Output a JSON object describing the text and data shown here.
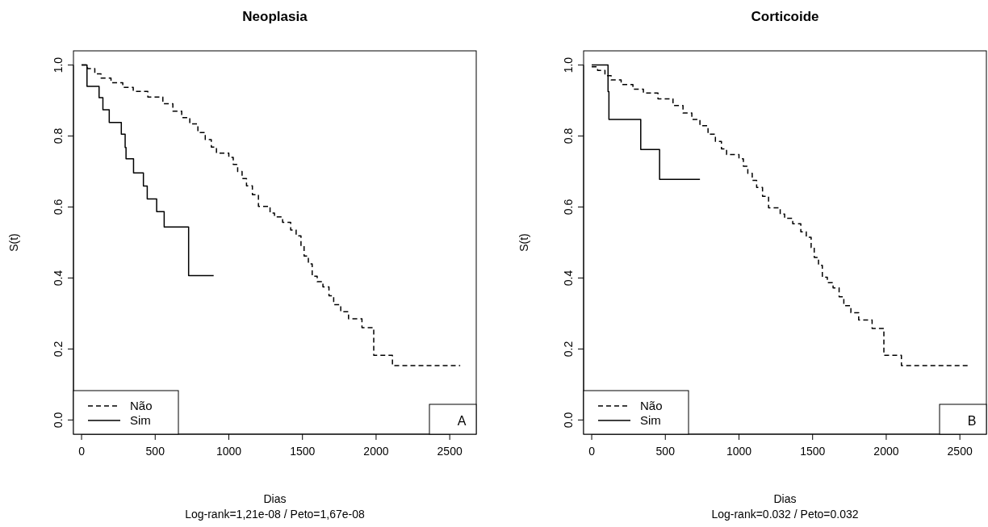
{
  "chart_data": [
    {
      "type": "step",
      "title": "Neoplasia",
      "xlabel": "Dias",
      "ylabel": "S(t)",
      "annotations": [
        "A",
        "Log-rank=1,21e-08  / Peto=1,67e-08"
      ],
      "xlim": [
        -55,
        2680
      ],
      "ylim": [
        -0.04,
        1.04
      ],
      "xticks": [
        0,
        500,
        1000,
        1500,
        2000,
        2500
      ],
      "yticks": [
        {
          "value": 0,
          "label": "0.0"
        },
        {
          "value": 0.2,
          "label": "0.2"
        },
        {
          "value": 0.4,
          "label": "0.4"
        },
        {
          "value": 0.6,
          "label": "0.6"
        },
        {
          "value": 0.8,
          "label": "0.8"
        },
        {
          "value": 1,
          "label": "1.0"
        }
      ],
      "legend": "bottom left",
      "grid": false,
      "series": [
        {
          "name": "Não",
          "color": "#000000",
          "line_style": "dashed",
          "x": [
            0,
            40,
            90,
            132,
            200,
            280,
            351,
            450,
            552,
            620,
            680,
            735,
            790,
            840,
            881,
            916,
            1000,
            1030,
            1060,
            1090,
            1120,
            1160,
            1201,
            1280,
            1310,
            1365,
            1420,
            1457,
            1490,
            1511,
            1540,
            1566,
            1600,
            1639,
            1680,
            1712,
            1760,
            1813,
            1904,
            1984,
            2111,
            2571
          ],
          "values": [
            1.0,
            0.99,
            0.975,
            0.963,
            0.95,
            0.937,
            0.926,
            0.91,
            0.891,
            0.87,
            0.852,
            0.834,
            0.81,
            0.79,
            0.769,
            0.752,
            0.74,
            0.72,
            0.7,
            0.68,
            0.66,
            0.635,
            0.602,
            0.583,
            0.572,
            0.557,
            0.535,
            0.519,
            0.49,
            0.462,
            0.44,
            0.405,
            0.39,
            0.375,
            0.35,
            0.325,
            0.305,
            0.285,
            0.26,
            0.182,
            0.153,
            0.153
          ]
        },
        {
          "name": "Sim",
          "color": "#000000",
          "line_style": "solid",
          "x": [
            0,
            37,
            119,
            145,
            188,
            270,
            296,
            302,
            353,
            420,
            446,
            510,
            561,
            727,
            897
          ],
          "values": [
            1.0,
            0.94,
            0.908,
            0.874,
            0.838,
            0.805,
            0.768,
            0.736,
            0.696,
            0.659,
            0.623,
            0.587,
            0.544,
            0.407,
            0.407
          ]
        }
      ]
    },
    {
      "type": "step",
      "title": "Corticoide",
      "xlabel": "Dias",
      "ylabel": "S(t)",
      "annotations": [
        "B",
        "Log-rank=0.032  / Peto=0.032"
      ],
      "xlim": [
        -55,
        2680
      ],
      "ylim": [
        -0.04,
        1.04
      ],
      "xticks": [
        0,
        500,
        1000,
        1500,
        2000,
        2500
      ],
      "yticks": [
        {
          "value": 0,
          "label": "0.0"
        },
        {
          "value": 0.2,
          "label": "0.2"
        },
        {
          "value": 0.4,
          "label": "0.4"
        },
        {
          "value": 0.6,
          "label": "0.6"
        },
        {
          "value": 0.8,
          "label": "0.8"
        },
        {
          "value": 1,
          "label": "1.0"
        }
      ],
      "legend": "bottom left",
      "grid": false,
      "series": [
        {
          "name": "Não",
          "color": "#000000",
          "line_style": "dashed",
          "x": [
            0,
            40,
            90,
            132,
            200,
            280,
            351,
            450,
            552,
            620,
            680,
            735,
            790,
            840,
            881,
            916,
            1000,
            1030,
            1060,
            1090,
            1120,
            1160,
            1201,
            1280,
            1310,
            1365,
            1420,
            1457,
            1490,
            1511,
            1540,
            1566,
            1600,
            1639,
            1680,
            1712,
            1760,
            1813,
            1904,
            1984,
            2103,
            2558
          ],
          "values": [
            0.995,
            0.985,
            0.97,
            0.958,
            0.945,
            0.932,
            0.921,
            0.905,
            0.886,
            0.865,
            0.847,
            0.829,
            0.805,
            0.785,
            0.764,
            0.748,
            0.736,
            0.715,
            0.695,
            0.675,
            0.655,
            0.63,
            0.598,
            0.58,
            0.568,
            0.553,
            0.53,
            0.515,
            0.486,
            0.458,
            0.436,
            0.402,
            0.387,
            0.372,
            0.347,
            0.322,
            0.302,
            0.282,
            0.258,
            0.182,
            0.153,
            0.153
          ]
        },
        {
          "name": "Sim",
          "color": "#000000",
          "line_style": "solid",
          "x": [
            0,
            111,
            117,
            333,
            461,
            735
          ],
          "values": [
            1.0,
            0.925,
            0.847,
            0.762,
            0.678,
            0.678
          ]
        }
      ]
    }
  ]
}
